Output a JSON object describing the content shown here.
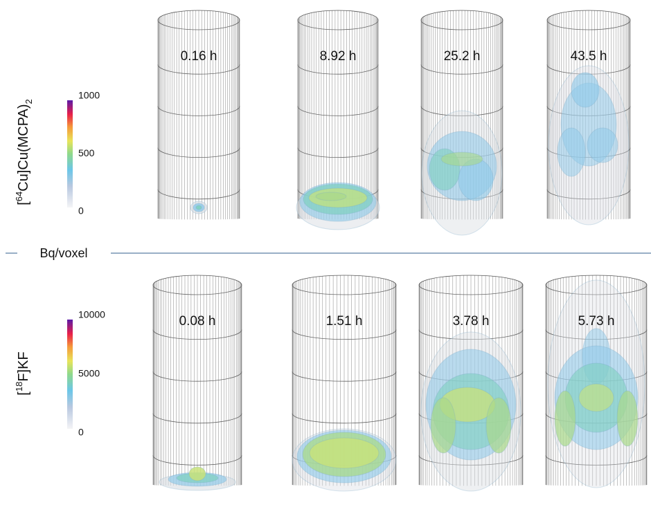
{
  "separator_label": "Bq/voxel",
  "rows": [
    {
      "label": {
        "prefix": "[",
        "sup": "64",
        "main": "Cu]Cu(MCPA)",
        "sub": "2"
      },
      "colorbar_ticks": [
        1000,
        500,
        0
      ],
      "panels": [
        "0.16 h",
        "8.92 h",
        "25.2 h",
        "43.5 h"
      ]
    },
    {
      "label": {
        "prefix": "[",
        "sup": "18",
        "main": "F]KF"
      },
      "colorbar_ticks": [
        10000,
        5000,
        0
      ],
      "panels": [
        "0.08 h",
        "1.51 h",
        "3.78 h",
        "5.73 h"
      ]
    }
  ]
}
